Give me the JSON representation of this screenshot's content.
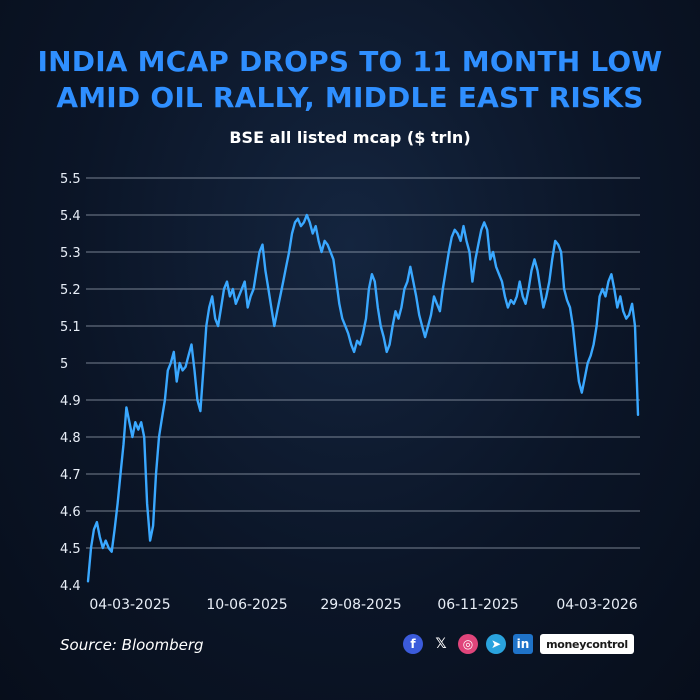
{
  "title_line1": "INDIA MCAP DROPS TO 11 MONTH LOW",
  "title_line2": "AMID OIL RALLY, MIDDLE EAST RISKS",
  "source": "Source: Bloomberg",
  "brand": "moneycontrol",
  "social_icons": [
    "facebook-icon",
    "x-icon",
    "instagram-icon",
    "telegram-icon",
    "linkedin-icon"
  ],
  "colors": {
    "title": "#2f8fff",
    "line": "#3aa8ff",
    "grid": "#cfd8e6"
  },
  "chart_data": {
    "type": "line",
    "title": "BSE all listed mcap ($ trln)",
    "xlabel": "",
    "ylabel": "",
    "ylim": [
      4.4,
      5.5
    ],
    "yticks": [
      "5.5",
      "5.4",
      "5.3",
      "5.2",
      "5.1",
      "5",
      "4.9",
      "4.8",
      "4.7",
      "4.6",
      "4.5",
      "4.4"
    ],
    "xticks": [
      "04-03-2025",
      "10-06-2025",
      "29-08-2025",
      "06-11-2025",
      "04-03-2026"
    ],
    "grid": true,
    "series": [
      {
        "values": [
          4.41,
          4.5,
          4.55,
          4.57,
          4.53,
          4.5,
          4.52,
          4.5,
          4.49,
          4.55,
          4.62,
          4.7,
          4.78,
          4.88,
          4.84,
          4.8,
          4.84,
          4.82,
          4.84,
          4.8,
          4.62,
          4.52,
          4.56,
          4.7,
          4.8,
          4.85,
          4.9,
          4.98,
          5.0,
          5.03,
          4.95,
          5.0,
          4.98,
          4.99,
          5.02,
          5.05,
          4.98,
          4.9,
          4.87,
          4.98,
          5.1,
          5.15,
          5.18,
          5.12,
          5.1,
          5.15,
          5.2,
          5.22,
          5.18,
          5.2,
          5.16,
          5.18,
          5.2,
          5.22,
          5.15,
          5.18,
          5.2,
          5.25,
          5.3,
          5.32,
          5.25,
          5.2,
          5.15,
          5.1,
          5.14,
          5.18,
          5.22,
          5.26,
          5.3,
          5.35,
          5.38,
          5.39,
          5.37,
          5.38,
          5.4,
          5.38,
          5.35,
          5.37,
          5.33,
          5.3,
          5.33,
          5.32,
          5.3,
          5.28,
          5.22,
          5.16,
          5.12,
          5.1,
          5.08,
          5.05,
          5.03,
          5.06,
          5.05,
          5.08,
          5.12,
          5.2,
          5.24,
          5.22,
          5.15,
          5.1,
          5.07,
          5.03,
          5.05,
          5.1,
          5.14,
          5.12,
          5.15,
          5.2,
          5.22,
          5.26,
          5.22,
          5.18,
          5.13,
          5.1,
          5.07,
          5.1,
          5.13,
          5.18,
          5.16,
          5.14,
          5.2,
          5.25,
          5.3,
          5.34,
          5.36,
          5.35,
          5.33,
          5.37,
          5.33,
          5.3,
          5.22,
          5.28,
          5.32,
          5.36,
          5.38,
          5.36,
          5.28,
          5.3,
          5.26,
          5.24,
          5.22,
          5.18,
          5.15,
          5.17,
          5.16,
          5.18,
          5.22,
          5.18,
          5.16,
          5.2,
          5.25,
          5.28,
          5.25,
          5.2,
          5.15,
          5.18,
          5.22,
          5.28,
          5.33,
          5.32,
          5.3,
          5.2,
          5.17,
          5.15,
          5.1,
          5.02,
          4.95,
          4.92,
          4.96,
          5.0,
          5.02,
          5.05,
          5.1,
          5.18,
          5.2,
          5.18,
          5.22,
          5.24,
          5.2,
          5.15,
          5.18,
          5.14,
          5.12,
          5.13,
          5.16,
          5.1,
          4.86
        ]
      }
    ]
  }
}
